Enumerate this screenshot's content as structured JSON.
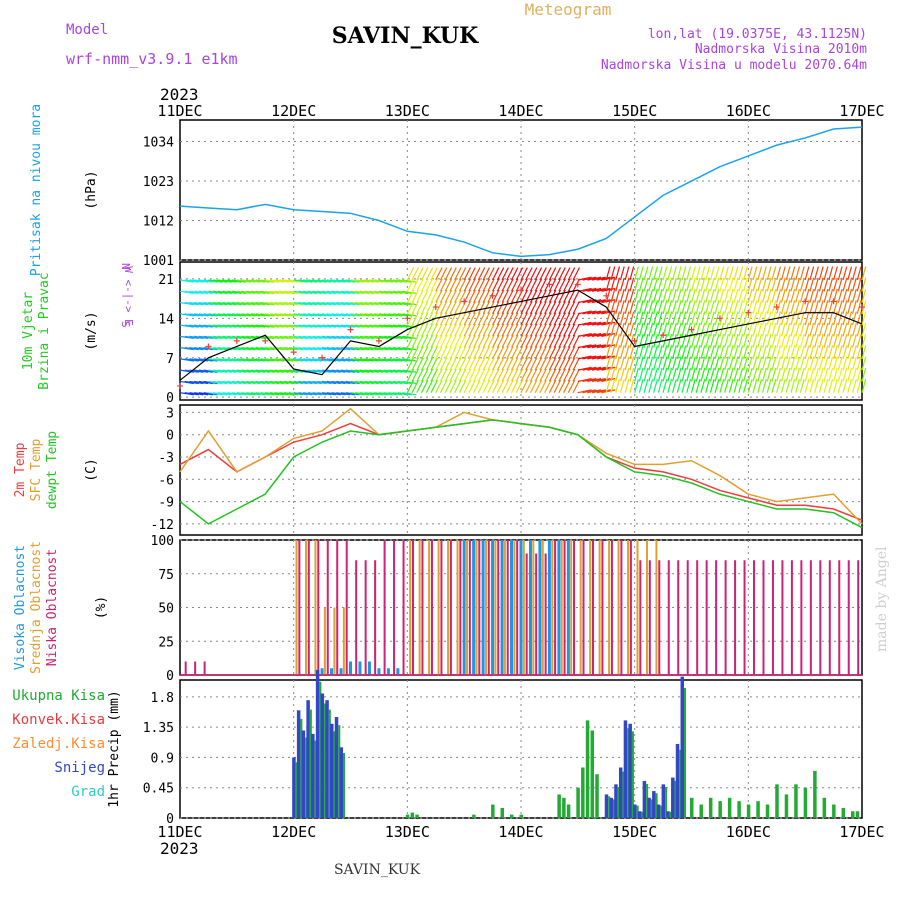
{
  "header": {
    "model_label": "Model",
    "model_name": "wrf-nmm_v3.9.1  e1km",
    "station": "SAVIN_KUK",
    "title": "Meteogram",
    "coords": "lon,lat (19.0375E, 43.1125N)",
    "elev_real": "Nadmorska Visina 2010m",
    "elev_model": "Nadmorska Visina u modelu 2070.64m",
    "year_top": "2023",
    "year_bottom": "2023",
    "footer_station": "SAVIN_KUK",
    "credit": "made by Angel"
  },
  "colors": {
    "pressure": "#1aa3e8",
    "t2m": "#f03c3c",
    "sfc": "#e0a030",
    "dewpt": "#22c322",
    "niska": "#cc2277",
    "srednja": "#e0a030",
    "visoka": "#1e96e6",
    "ukupna": "#22aa33",
    "konvek": "#e83c3c",
    "zaledj": "#ff8c32",
    "snijeg": "#3246c8",
    "grad": "#32c8c8",
    "wind_label": "#22cc22",
    "dir_label": "#aa44dd",
    "grid": "#888888"
  },
  "chart_data": [
    {
      "type": "line",
      "name": "pressure",
      "ylabel_lines": [
        "Pritisak na nivou mora"
      ],
      "unit": "(hPa)",
      "ylim": [
        1001,
        1040
      ],
      "yticks": [
        "1001",
        "1012",
        "1023",
        "1034"
      ],
      "x_ticks": [
        "11DEC",
        "12DEC",
        "13DEC",
        "14DEC",
        "15DEC",
        "16DEC",
        "17DEC"
      ],
      "x_hours": [
        0,
        6,
        12,
        18,
        24,
        30,
        36,
        42,
        48,
        54,
        60,
        66,
        72,
        78,
        84,
        90,
        96,
        102,
        108,
        114,
        120,
        126,
        132,
        138,
        144
      ],
      "series": [
        {
          "values": [
            1016,
            1015.5,
            1015,
            1016.5,
            1015,
            1014.5,
            1014,
            1012,
            1009,
            1008,
            1006,
            1003,
            1002,
            1002.5,
            1004,
            1007,
            1013,
            1019,
            1023,
            1027,
            1030,
            1033,
            1035,
            1037.5,
            1038
          ]
        }
      ]
    },
    {
      "type": "line",
      "name": "wind",
      "ylabel_lines": [
        "10m Vjetar",
        "Brzina i Pravac"
      ],
      "unit": "(m/s)",
      "ylim": [
        -0.5,
        24
      ],
      "yticks": [
        "0",
        "7",
        "14",
        "21"
      ],
      "compass": "N  W <-|-> E  S",
      "series": [
        {
          "name": "speed",
          "values": [
            3,
            7,
            9,
            11,
            5,
            4,
            10,
            9,
            12,
            14,
            15,
            16,
            17,
            18,
            19,
            16,
            9,
            10,
            11,
            12,
            13,
            14,
            15,
            15,
            13
          ]
        },
        {
          "name": "gust",
          "values": [
            2,
            9,
            10,
            10,
            8,
            7,
            12,
            10,
            14,
            16,
            17,
            18,
            19,
            20,
            20,
            18,
            10,
            11,
            12,
            14,
            15,
            16,
            17,
            17,
            16
          ]
        }
      ]
    },
    {
      "type": "line",
      "name": "temperature",
      "ylabel_lines": [
        "2m Temp",
        "SFC Temp",
        "dewpt Temp"
      ],
      "unit": "(C)",
      "ylim": [
        -13.5,
        4
      ],
      "yticks": [
        "3",
        "0",
        "-3",
        "-6",
        "-9",
        "-12"
      ],
      "series": [
        {
          "name": "2m Temp",
          "values": [
            -4,
            -2,
            -5,
            -3,
            -1,
            0,
            1.5,
            0,
            0.5,
            1,
            1.5,
            2,
            1.5,
            1,
            0,
            -3,
            -4.5,
            -5,
            -6,
            -7.5,
            -8.5,
            -9.5,
            -9.5,
            -10,
            -11.5
          ]
        },
        {
          "name": "SFC Temp",
          "values": [
            -5,
            0.5,
            -5,
            -3,
            -0.5,
            0.5,
            3.5,
            0,
            0.5,
            1,
            3,
            2,
            1.5,
            1,
            0,
            -2.5,
            -4,
            -4,
            -3.5,
            -5.5,
            -8,
            -9,
            -8.5,
            -8,
            -12
          ]
        },
        {
          "name": "dewpt Temp",
          "values": [
            -9,
            -12,
            -10,
            -8,
            -3,
            -1,
            0.5,
            0,
            0.5,
            1,
            1.5,
            2,
            1.5,
            1,
            0,
            -3,
            -5,
            -5.5,
            -6.5,
            -8,
            -9,
            -10,
            -10,
            -10.5,
            -12.5
          ]
        }
      ]
    },
    {
      "type": "bar",
      "name": "clouds",
      "ylabel_lines": [
        "Visoka Oblacnost",
        "Srednja Oblacnost",
        "Niska Oblacnost"
      ],
      "unit": "(%)",
      "ylim": [
        0,
        100
      ],
      "yticks": [
        "100",
        "75",
        "50",
        "25",
        "0"
      ],
      "series": [
        {
          "name": "Visoka Oblacnost",
          "values": [
            0,
            0,
            0,
            0,
            0,
            5,
            10,
            5,
            0,
            0,
            100,
            100,
            100,
            100,
            0,
            0,
            0,
            0,
            0,
            0,
            0,
            0,
            0,
            0,
            0
          ]
        },
        {
          "name": "Srednja Oblacnost",
          "values": [
            0,
            0,
            0,
            0,
            100,
            50,
            0,
            0,
            100,
            100,
            100,
            100,
            100,
            100,
            100,
            100,
            100,
            0,
            0,
            0,
            0,
            0,
            0,
            0,
            0
          ]
        },
        {
          "name": "Niska Oblacnost",
          "values": [
            10,
            0,
            0,
            0,
            100,
            100,
            85,
            100,
            100,
            100,
            100,
            100,
            90,
            100,
            100,
            100,
            85,
            85,
            85,
            85,
            85,
            85,
            85,
            85,
            85
          ]
        }
      ]
    },
    {
      "type": "bar",
      "name": "precipitation",
      "ylabel_lines": [
        "1hr Precip (mm)"
      ],
      "unit": "",
      "ylim": [
        0,
        2.05
      ],
      "yticks": [
        "1.8",
        "1.35",
        "0.9",
        "0.45",
        "0"
      ],
      "legend": [
        "Ukupna Kisa",
        "Konvek.Kisa",
        "Zaledj.Kisa",
        "Snijeg",
        "Grad"
      ],
      "series": [
        {
          "name": "Snijeg",
          "hours": [
            24,
            25,
            26,
            27,
            28,
            29,
            30,
            31,
            32,
            33,
            34,
            90,
            91,
            92,
            93,
            94,
            95,
            96,
            97,
            98,
            99,
            100,
            101,
            102,
            103,
            104,
            105,
            106
          ],
          "values": [
            0.9,
            1.6,
            1.3,
            1.75,
            1.25,
            2.2,
            1.85,
            1.75,
            1.4,
            1.5,
            1.05,
            0.35,
            0.3,
            0.5,
            0.75,
            1.45,
            1.4,
            0.2,
            0.1,
            0.55,
            0.3,
            0.4,
            0.2,
            0.5,
            0.1,
            0.6,
            1.1,
            2.1
          ]
        },
        {
          "name": "Ukupna Kisa",
          "hours": [
            48,
            49,
            50,
            62,
            66,
            68,
            70,
            72,
            80,
            81,
            82,
            84,
            85,
            86,
            87,
            88,
            108,
            110,
            112,
            114,
            116,
            118,
            120,
            122,
            124,
            126,
            128,
            130,
            132,
            134,
            136,
            138,
            140,
            142,
            143
          ],
          "values": [
            0.05,
            0.08,
            0.05,
            0.05,
            0.2,
            0.15,
            0.05,
            0.05,
            0.35,
            0.3,
            0.2,
            0.45,
            0.75,
            1.45,
            1.3,
            0.65,
            0.3,
            0.2,
            0.3,
            0.25,
            0.3,
            0.25,
            0.2,
            0.25,
            0.2,
            0.5,
            0.35,
            0.5,
            0.45,
            0.7,
            0.3,
            0.2,
            0.15,
            0.1,
            0.1
          ]
        }
      ]
    }
  ]
}
